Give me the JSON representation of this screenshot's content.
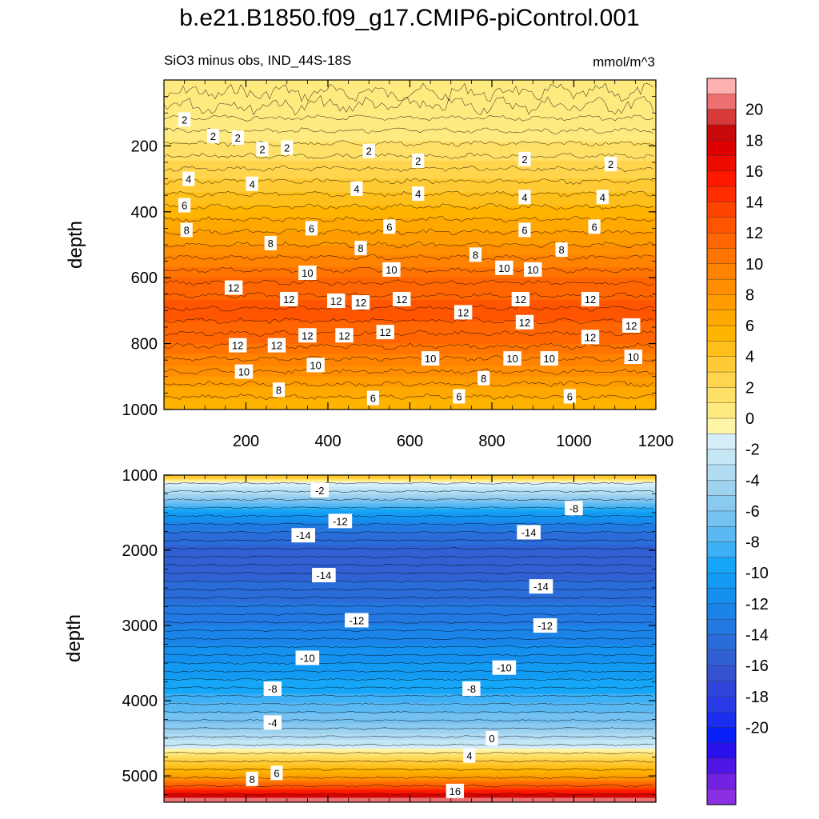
{
  "header": {
    "title": "b.e21.B1850.f09_g17.CMIP6-piControl.001",
    "subtitle": "SiO3 minus obs, IND_44S-18S",
    "units": "mmol/m^3"
  },
  "colors": {
    "levels_positive": [
      "#fff5a6",
      "#ffea80",
      "#ffe066",
      "#ffd54d",
      "#ffca33",
      "#ffbf1a",
      "#ffb400",
      "#ffa800",
      "#ff9c00",
      "#ff8f00",
      "#ff8200",
      "#ff7400",
      "#ff6500",
      "#ff5500",
      "#ff4400",
      "#ff2d00",
      "#ff1800",
      "#ee0c00",
      "#dc0000",
      "#c80a0a",
      "#d83a3a",
      "#ec7070",
      "#ffb0b0"
    ],
    "levels_negative": [
      "#d6eefa",
      "#c4e6f5",
      "#b2dcf1",
      "#9fd2ef",
      "#8bcaf0",
      "#74c1f2",
      "#5ab9f3",
      "#3eb0f5",
      "#16a6f7",
      "#139af3",
      "#1590ee",
      "#1a84e8",
      "#2378e1",
      "#2a6cda",
      "#3060d4",
      "#3553d0",
      "#2f45da",
      "#283be6",
      "#1a2ef0",
      "#0a20f8",
      "#2a10ec",
      "#4f16e6",
      "#7222e0",
      "#8b2fe4"
    ]
  },
  "chart_data": [
    {
      "type": "filled-contour",
      "panel": "upper",
      "title": "SiO3 minus obs, IND_44S-18S",
      "units": "mmol/m^3",
      "xlabel": "",
      "ylabel": "depth",
      "xlim": [
        0,
        1200
      ],
      "ylim": [
        1000,
        0
      ],
      "xticks": [
        200,
        400,
        600,
        800,
        1000,
        1200
      ],
      "xtick_labels": [
        "200",
        "400",
        "600",
        "800",
        "1000",
        "1200"
      ],
      "yticks": [
        200,
        400,
        600,
        800,
        1000
      ],
      "ytick_labels": [
        "200",
        "400",
        "600",
        "800",
        "1000"
      ],
      "profile": [
        {
          "depth": 0,
          "value": 1
        },
        {
          "depth": 150,
          "value": 1.5
        },
        {
          "depth": 200,
          "value": 2.2
        },
        {
          "depth": 300,
          "value": 4
        },
        {
          "depth": 400,
          "value": 6.5
        },
        {
          "depth": 500,
          "value": 9
        },
        {
          "depth": 600,
          "value": 12
        },
        {
          "depth": 700,
          "value": 13.5
        },
        {
          "depth": 800,
          "value": 12
        },
        {
          "depth": 900,
          "value": 9
        },
        {
          "depth": 1000,
          "value": 6
        }
      ],
      "contour_labels": [
        {
          "x": 50,
          "depth": 120,
          "text": "2"
        },
        {
          "x": 120,
          "depth": 170,
          "text": "2"
        },
        {
          "x": 180,
          "depth": 175,
          "text": "2"
        },
        {
          "x": 240,
          "depth": 210,
          "text": "2"
        },
        {
          "x": 300,
          "depth": 205,
          "text": "2"
        },
        {
          "x": 500,
          "depth": 215,
          "text": "2"
        },
        {
          "x": 620,
          "depth": 245,
          "text": "2"
        },
        {
          "x": 880,
          "depth": 240,
          "text": "2"
        },
        {
          "x": 1090,
          "depth": 255,
          "text": "2"
        },
        {
          "x": 60,
          "depth": 300,
          "text": "4"
        },
        {
          "x": 215,
          "depth": 315,
          "text": "4"
        },
        {
          "x": 470,
          "depth": 330,
          "text": "4"
        },
        {
          "x": 620,
          "depth": 345,
          "text": "4"
        },
        {
          "x": 880,
          "depth": 355,
          "text": "4"
        },
        {
          "x": 1070,
          "depth": 355,
          "text": "4"
        },
        {
          "x": 50,
          "depth": 380,
          "text": "6"
        },
        {
          "x": 360,
          "depth": 450,
          "text": "6"
        },
        {
          "x": 550,
          "depth": 445,
          "text": "6"
        },
        {
          "x": 880,
          "depth": 455,
          "text": "6"
        },
        {
          "x": 1050,
          "depth": 445,
          "text": "6"
        },
        {
          "x": 55,
          "depth": 455,
          "text": "8"
        },
        {
          "x": 260,
          "depth": 495,
          "text": "8"
        },
        {
          "x": 480,
          "depth": 510,
          "text": "8"
        },
        {
          "x": 760,
          "depth": 530,
          "text": "8"
        },
        {
          "x": 970,
          "depth": 515,
          "text": "8"
        },
        {
          "x": 350,
          "depth": 585,
          "text": "10"
        },
        {
          "x": 555,
          "depth": 575,
          "text": "10"
        },
        {
          "x": 830,
          "depth": 570,
          "text": "10"
        },
        {
          "x": 900,
          "depth": 575,
          "text": "10"
        },
        {
          "x": 170,
          "depth": 630,
          "text": "12"
        },
        {
          "x": 305,
          "depth": 665,
          "text": "12"
        },
        {
          "x": 420,
          "depth": 670,
          "text": "12"
        },
        {
          "x": 480,
          "depth": 675,
          "text": "12"
        },
        {
          "x": 580,
          "depth": 665,
          "text": "12"
        },
        {
          "x": 730,
          "depth": 705,
          "text": "12"
        },
        {
          "x": 870,
          "depth": 665,
          "text": "12"
        },
        {
          "x": 1040,
          "depth": 665,
          "text": "12"
        },
        {
          "x": 180,
          "depth": 805,
          "text": "12"
        },
        {
          "x": 275,
          "depth": 805,
          "text": "12"
        },
        {
          "x": 350,
          "depth": 775,
          "text": "12"
        },
        {
          "x": 440,
          "depth": 775,
          "text": "12"
        },
        {
          "x": 540,
          "depth": 765,
          "text": "12"
        },
        {
          "x": 880,
          "depth": 735,
          "text": "12"
        },
        {
          "x": 1040,
          "depth": 780,
          "text": "12"
        },
        {
          "x": 1140,
          "depth": 745,
          "text": "12"
        },
        {
          "x": 195,
          "depth": 885,
          "text": "10"
        },
        {
          "x": 370,
          "depth": 865,
          "text": "10"
        },
        {
          "x": 650,
          "depth": 845,
          "text": "10"
        },
        {
          "x": 850,
          "depth": 845,
          "text": "10"
        },
        {
          "x": 940,
          "depth": 845,
          "text": "10"
        },
        {
          "x": 1145,
          "depth": 840,
          "text": "10"
        },
        {
          "x": 280,
          "depth": 940,
          "text": "8"
        },
        {
          "x": 780,
          "depth": 905,
          "text": "8"
        },
        {
          "x": 510,
          "depth": 965,
          "text": "6"
        },
        {
          "x": 720,
          "depth": 960,
          "text": "6"
        },
        {
          "x": 990,
          "depth": 960,
          "text": "6"
        }
      ]
    },
    {
      "type": "filled-contour",
      "panel": "lower",
      "ylabel": "depth",
      "xlim": [
        0,
        1200
      ],
      "ylim": [
        5350,
        1000
      ],
      "yticks": [
        1000,
        2000,
        3000,
        4000,
        5000
      ],
      "ytick_labels": [
        "1000",
        "2000",
        "3000",
        "4000",
        "5000"
      ],
      "profile": [
        {
          "depth": 1000,
          "value": 6
        },
        {
          "depth": 1100,
          "value": 0
        },
        {
          "depth": 1300,
          "value": -4
        },
        {
          "depth": 1500,
          "value": -9
        },
        {
          "depth": 1700,
          "value": -12.5
        },
        {
          "depth": 2000,
          "value": -14.5
        },
        {
          "depth": 2400,
          "value": -14
        },
        {
          "depth": 3000,
          "value": -12
        },
        {
          "depth": 3500,
          "value": -10
        },
        {
          "depth": 3900,
          "value": -8
        },
        {
          "depth": 4300,
          "value": -5
        },
        {
          "depth": 4600,
          "value": -1
        },
        {
          "depth": 4800,
          "value": 4
        },
        {
          "depth": 5000,
          "value": 8
        },
        {
          "depth": 5150,
          "value": 14
        },
        {
          "depth": 5250,
          "value": 18
        },
        {
          "depth": 5300,
          "value": 21
        }
      ],
      "contour_labels": [
        {
          "x": 380,
          "depth": 1200,
          "text": "-2"
        },
        {
          "x": 430,
          "depth": 1610,
          "text": "-12"
        },
        {
          "x": 340,
          "depth": 1800,
          "text": "-14"
        },
        {
          "x": 1000,
          "depth": 1440,
          "text": "-8"
        },
        {
          "x": 890,
          "depth": 1760,
          "text": "-14"
        },
        {
          "x": 390,
          "depth": 2330,
          "text": "-14"
        },
        {
          "x": 920,
          "depth": 2480,
          "text": "-14"
        },
        {
          "x": 470,
          "depth": 2930,
          "text": "-12"
        },
        {
          "x": 930,
          "depth": 3000,
          "text": "-12"
        },
        {
          "x": 350,
          "depth": 3430,
          "text": "-10"
        },
        {
          "x": 830,
          "depth": 3560,
          "text": "-10"
        },
        {
          "x": 265,
          "depth": 3840,
          "text": "-8"
        },
        {
          "x": 750,
          "depth": 3840,
          "text": "-8"
        },
        {
          "x": 265,
          "depth": 4290,
          "text": "-4"
        },
        {
          "x": 800,
          "depth": 4500,
          "text": "0"
        },
        {
          "x": 745,
          "depth": 4730,
          "text": "4"
        },
        {
          "x": 275,
          "depth": 4960,
          "text": "6"
        },
        {
          "x": 215,
          "depth": 5040,
          "text": "8"
        },
        {
          "x": 710,
          "depth": 5200,
          "text": "16"
        }
      ]
    }
  ],
  "colorbar": {
    "labels": [
      "20",
      "18",
      "16",
      "14",
      "12",
      "10",
      "8",
      "6",
      "4",
      "2",
      "0",
      "-2",
      "-4",
      "-6",
      "-8",
      "-10",
      "-12",
      "-14",
      "-16",
      "-18",
      "-20"
    ]
  }
}
